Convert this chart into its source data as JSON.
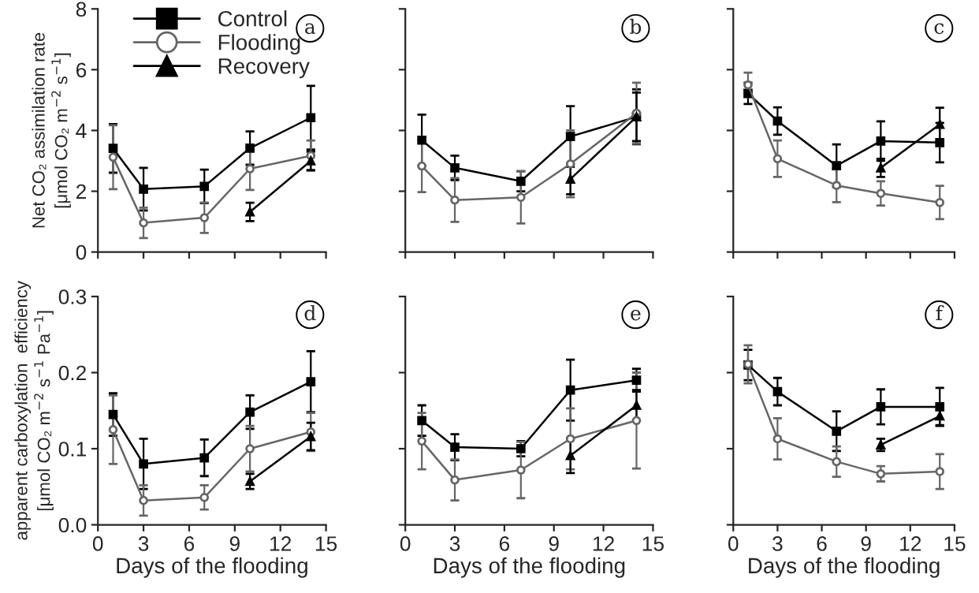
{
  "chart_data": [
    {
      "type": "line",
      "ylabel": "Net CO₂ assimilation rate\n[μmol CO₂ m$^{−2}$ s$^{−1}$]",
      "annotations": [
        "a"
      ],
      "xlim": [
        0,
        15
      ],
      "xticks": [
        0,
        3,
        6,
        9,
        12,
        15
      ],
      "ylim": [
        0,
        8
      ],
      "yticks": [
        0,
        2,
        4,
        6,
        8
      ],
      "tick_labels": "y",
      "legend": "top left",
      "series": [
        {
          "name": "Control",
          "color": "#000000",
          "marker": "square",
          "x": [
            1,
            3,
            7,
            10,
            14
          ],
          "values": [
            3.41,
            2.07,
            2.16,
            3.42,
            4.42
          ],
          "errors": [
            0.8,
            0.7,
            0.55,
            0.55,
            1.05
          ]
        },
        {
          "name": "Flooding",
          "color": "#666666",
          "marker": "circle",
          "x": [
            1,
            3,
            7,
            10,
            14
          ],
          "values": [
            3.12,
            0.96,
            1.13,
            2.74,
            3.17
          ],
          "errors": [
            1.05,
            0.5,
            0.5,
            0.7,
            0.5
          ]
        },
        {
          "name": "Recovery",
          "color": "#000000",
          "marker": "triangle",
          "x": [
            10,
            14
          ],
          "values": [
            1.32,
            3.0
          ],
          "errors": [
            0.3,
            0.3
          ]
        }
      ]
    },
    {
      "type": "line",
      "annotations": [
        "b"
      ],
      "xlim": [
        0,
        15
      ],
      "xticks": [
        0,
        3,
        6,
        9,
        12,
        15
      ],
      "ylim": [
        0,
        8
      ],
      "yticks": [
        0,
        2,
        4,
        6,
        8
      ],
      "tick_labels": false,
      "series": [
        {
          "color": "#000000",
          "marker": "square",
          "x": [
            1,
            3,
            7,
            10,
            14
          ],
          "values": [
            3.68,
            2.77,
            2.33,
            3.8,
            4.45
          ],
          "errors": [
            0.84,
            0.4,
            0.33,
            1.0,
            0.9
          ]
        },
        {
          "color": "#666666",
          "marker": "circle",
          "x": [
            1,
            3,
            7,
            10,
            14
          ],
          "values": [
            2.83,
            1.71,
            1.8,
            2.9,
            4.57
          ],
          "errors": [
            0.86,
            0.72,
            0.86,
            1.1,
            1.0
          ]
        },
        {
          "color": "#000000",
          "marker": "triangle",
          "x": [
            10,
            14
          ],
          "values": [
            2.4,
            4.45
          ],
          "errors": [
            0.5,
            0.8
          ]
        }
      ]
    },
    {
      "type": "line",
      "annotations": [
        "c"
      ],
      "xlim": [
        0,
        15
      ],
      "xticks": [
        0,
        3,
        6,
        9,
        12,
        15
      ],
      "ylim": [
        0,
        8
      ],
      "yticks": [
        0,
        2,
        4,
        6,
        8
      ],
      "tick_labels": false,
      "series": [
        {
          "color": "#000000",
          "marker": "square",
          "x": [
            1,
            3,
            7,
            10,
            14
          ],
          "values": [
            5.22,
            4.31,
            2.84,
            3.65,
            3.6
          ],
          "errors": [
            0.35,
            0.45,
            0.7,
            0.65,
            0.65
          ]
        },
        {
          "color": "#666666",
          "marker": "circle",
          "x": [
            1,
            3,
            7,
            10,
            14
          ],
          "values": [
            5.5,
            3.07,
            2.19,
            1.93,
            1.63
          ],
          "errors": [
            0.4,
            0.6,
            0.55,
            0.4,
            0.55
          ]
        },
        {
          "color": "#000000",
          "marker": "triangle",
          "x": [
            10,
            14
          ],
          "values": [
            2.77,
            4.2
          ],
          "errors": [
            0.3,
            0.55
          ]
        }
      ]
    },
    {
      "type": "line",
      "ylabel": "apparent carboxylation  efficiency\n[μmol CO₂ m$^{−2}$ s$^{−1}$ Pa$^{−1}$]",
      "xlabel": "Days of the flooding",
      "annotations": [
        "d"
      ],
      "xlim": [
        0,
        15
      ],
      "xticks": [
        0,
        3,
        6,
        9,
        12,
        15
      ],
      "ylim": [
        0,
        0.3
      ],
      "yticks": [
        {
          "value": 0,
          "label": "0.0"
        },
        0.1,
        0.2,
        0.3
      ],
      "series": [
        {
          "color": "#000000",
          "marker": "square",
          "x": [
            1,
            3,
            7,
            10,
            14
          ],
          "values": [
            0.145,
            0.08,
            0.088,
            0.148,
            0.188
          ],
          "errors": [
            0.028,
            0.033,
            0.024,
            0.022,
            0.04
          ]
        },
        {
          "color": "#666666",
          "marker": "circle",
          "x": [
            1,
            3,
            7,
            10,
            14
          ],
          "values": [
            0.125,
            0.032,
            0.036,
            0.1,
            0.122
          ],
          "errors": [
            0.045,
            0.02,
            0.016,
            0.03,
            0.025
          ]
        },
        {
          "color": "#000000",
          "marker": "triangle",
          "x": [
            10,
            14
          ],
          "values": [
            0.057,
            0.116
          ],
          "errors": [
            0.01,
            0.018
          ]
        }
      ]
    },
    {
      "type": "line",
      "xlabel": "Days of the flooding",
      "annotations": [
        "e"
      ],
      "xlim": [
        0,
        15
      ],
      "xticks": [
        0,
        3,
        6,
        9,
        12,
        15
      ],
      "ylim": [
        0,
        0.3
      ],
      "yticks": [
        0,
        0.1,
        0.2,
        0.3
      ],
      "tick_labels": "x",
      "series": [
        {
          "color": "#000000",
          "marker": "square",
          "x": [
            1,
            3,
            7,
            10,
            14
          ],
          "values": [
            0.137,
            0.102,
            0.1,
            0.177,
            0.19
          ],
          "errors": [
            0.02,
            0.017,
            0.01,
            0.04,
            0.015
          ]
        },
        {
          "color": "#666666",
          "marker": "circle",
          "x": [
            1,
            3,
            7,
            10,
            14
          ],
          "values": [
            0.11,
            0.059,
            0.072,
            0.113,
            0.137
          ],
          "errors": [
            0.037,
            0.027,
            0.037,
            0.04,
            0.063
          ]
        },
        {
          "color": "#000000",
          "marker": "triangle",
          "x": [
            10,
            14
          ],
          "values": [
            0.091,
            0.157
          ],
          "errors": [
            0.023,
            0.02
          ]
        }
      ]
    },
    {
      "type": "line",
      "xlabel": "Days of the flooding",
      "annotations": [
        "f"
      ],
      "xlim": [
        0,
        15
      ],
      "xticks": [
        0,
        3,
        6,
        9,
        12,
        15
      ],
      "ylim": [
        0,
        0.3
      ],
      "yticks": [
        0,
        0.1,
        0.2,
        0.3
      ],
      "tick_labels": "x",
      "series": [
        {
          "color": "#000000",
          "marker": "square",
          "x": [
            1,
            3,
            7,
            10,
            14
          ],
          "values": [
            0.21,
            0.175,
            0.123,
            0.155,
            0.155
          ],
          "errors": [
            0.02,
            0.018,
            0.026,
            0.023,
            0.025
          ]
        },
        {
          "color": "#666666",
          "marker": "circle",
          "x": [
            1,
            3,
            7,
            10,
            14
          ],
          "values": [
            0.211,
            0.113,
            0.083,
            0.067,
            0.07
          ],
          "errors": [
            0.025,
            0.027,
            0.02,
            0.01,
            0.023
          ]
        },
        {
          "color": "#000000",
          "marker": "triangle",
          "x": [
            10,
            14
          ],
          "values": [
            0.105,
            0.143
          ],
          "errors": [
            0.008,
            0.012
          ]
        }
      ]
    }
  ]
}
